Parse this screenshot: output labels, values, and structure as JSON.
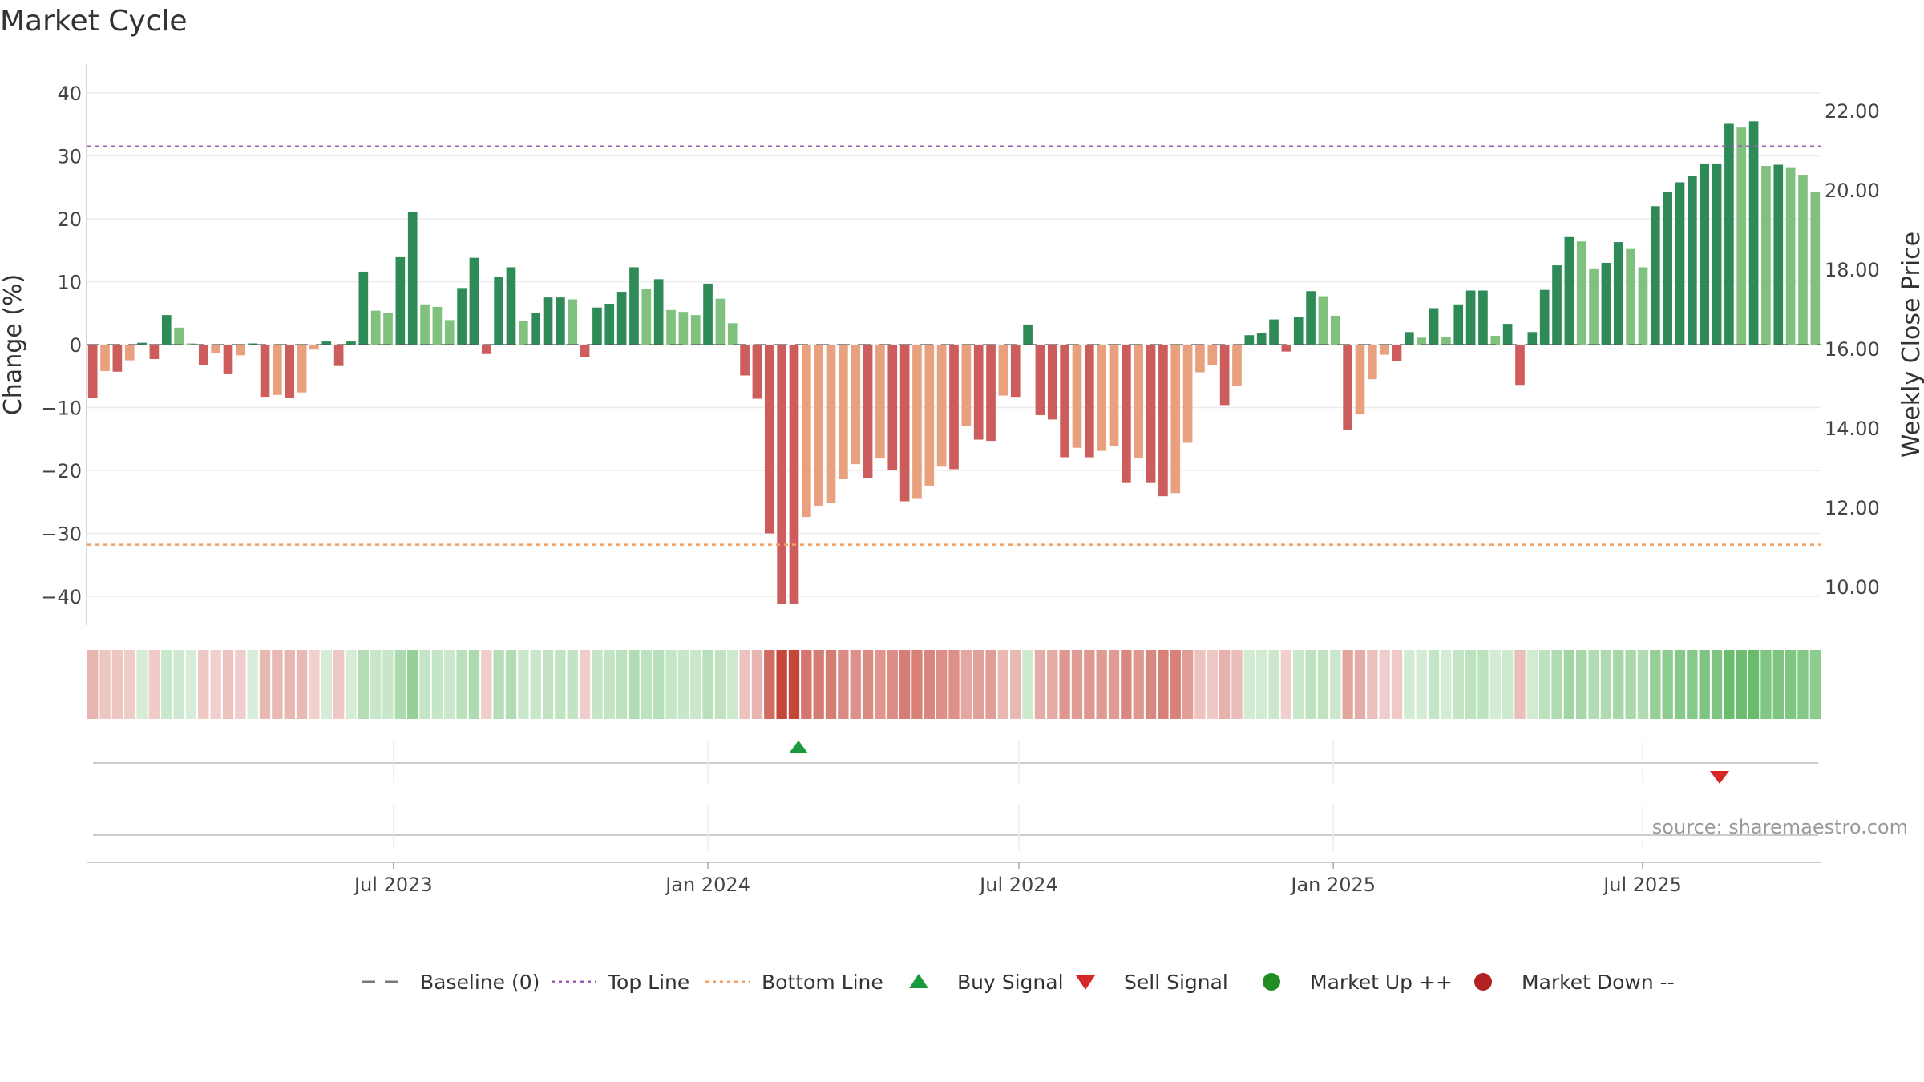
{
  "chart_data": {
    "type": "bar",
    "title": "Market Cycle",
    "ylabel": "Change (%)",
    "y2label": "Weekly Close Price",
    "ylim": [
      -45,
      45
    ],
    "y_ticks": [
      40,
      30,
      20,
      10,
      0,
      -10,
      -20,
      -30,
      -40
    ],
    "y_tick_labels": [
      "40",
      "30",
      "20",
      "10",
      "0",
      "−10",
      "−20",
      "−30",
      "−40"
    ],
    "y2lim": [
      9.0,
      23.0
    ],
    "y2_ticks": [
      "22.00",
      "20.00",
      "18.00",
      "16.00",
      "14.00",
      "12.00",
      "10.00"
    ],
    "x_start": "2023-01-06",
    "x_end": "2025-10-10",
    "x_ticks": [
      {
        "date": "2023-07-01",
        "label": "Jul 2023"
      },
      {
        "date": "2024-01-01",
        "label": "Jan 2024"
      },
      {
        "date": "2024-07-01",
        "label": "Jul 2024"
      },
      {
        "date": "2025-01-01",
        "label": "Jan 2025"
      },
      {
        "date": "2025-07-01",
        "label": "Jul 2025"
      }
    ],
    "top_line": 31.5,
    "bottom_line": -31.8,
    "baseline": 0,
    "values": [
      -8.5,
      -4.2,
      -4.3,
      -2.5,
      0.3,
      -2.3,
      4.7,
      2.7,
      0,
      -3.2,
      -1.3,
      -4.7,
      -1.7,
      0,
      -8.3,
      -8,
      -8.5,
      -7.6,
      -0.8,
      0.5,
      -3.4,
      0.5,
      11.6,
      5.4,
      5.1,
      13.9,
      21.1,
      6.4,
      6,
      3.9,
      9,
      13.8,
      -1.5,
      10.8,
      12.3,
      3.8,
      5.1,
      7.5,
      7.5,
      7.2,
      -2,
      5.9,
      6.5,
      8.4,
      12.3,
      8.8,
      10.4,
      5.5,
      5.2,
      4.7,
      9.7,
      7.3,
      3.4,
      -4.9,
      -8.6,
      -30,
      -41.2,
      -41.2,
      -27.4,
      -25.6,
      -25.1,
      -21.4,
      -19,
      -21.2,
      -18.1,
      -20,
      -24.9,
      -24.4,
      -22.4,
      -19.4,
      -19.8,
      -12.9,
      -15.1,
      -15.3,
      -8.1,
      -8.3,
      3.2,
      -11.2,
      -11.9,
      -17.9,
      -16.4,
      -17.9,
      -16.9,
      -16.1,
      -22,
      -18,
      -22,
      -24.1,
      -23.6,
      -15.6,
      -4.4,
      -3.2,
      -9.6,
      -6.5,
      1.5,
      1.8,
      4,
      -1.1,
      4.4,
      8.5,
      7.7,
      4.6,
      -13.5,
      -11.1,
      -5.5,
      -1.6,
      -2.6,
      2,
      1.1,
      5.8,
      1.2,
      6.4,
      8.6,
      8.6,
      1.4,
      3.3,
      -6.4,
      2,
      8.7,
      12.6,
      17.1,
      16.4,
      12,
      13,
      16.3,
      15.2,
      12.3,
      22,
      24.3,
      25.8,
      26.8,
      28.8,
      28.8,
      35.1,
      34.5,
      35.5,
      28.4,
      28.6,
      28.2,
      27,
      24.3
    ],
    "bar_colors": {
      "up_strong": "#2e8b57",
      "up_weak": "#7fc17d",
      "down_strong": "#cd5c5c",
      "down_weak": "#e8a07f"
    },
    "heat_colors": {
      "up": "#4caf50",
      "down": "#c0392b"
    },
    "signals": [
      {
        "type": "buy",
        "date": "2024-02-23"
      },
      {
        "type": "sell",
        "date": "2025-08-15"
      }
    ],
    "legend_position": "bottom",
    "legend": [
      {
        "label": "Baseline (0)",
        "symbol": "dash",
        "color": "#777777"
      },
      {
        "label": "Top Line",
        "symbol": "dot",
        "color": "#9b59b6"
      },
      {
        "label": "Bottom Line",
        "symbol": "dot",
        "color": "#f0a060"
      },
      {
        "label": "Buy Signal",
        "symbol": "triangle-up",
        "color": "#1a9a3c"
      },
      {
        "label": "Sell Signal",
        "symbol": "triangle-down",
        "color": "#d62728"
      },
      {
        "label": "Market Up ++",
        "symbol": "circle",
        "color": "#228b22"
      },
      {
        "label": "Market Down --",
        "symbol": "circle",
        "color": "#b22222"
      }
    ],
    "source": "source: sharemaestro.com"
  }
}
